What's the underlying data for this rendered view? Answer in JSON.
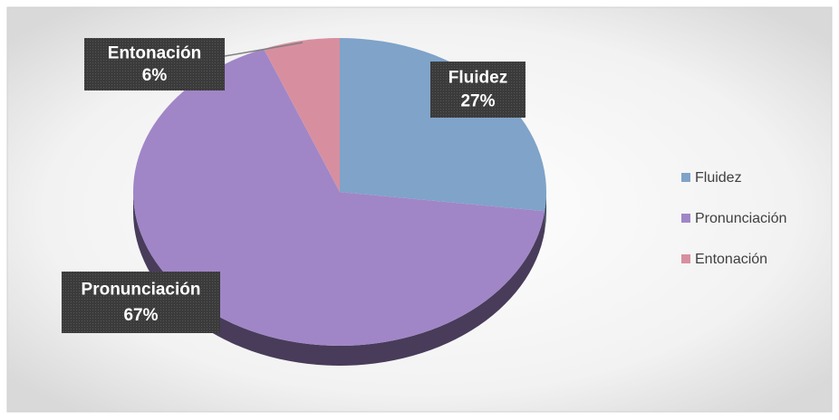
{
  "chart_data": {
    "type": "pie3d",
    "categories": [
      "Fluidez",
      "Pronunciación",
      "Entonación"
    ],
    "values": [
      27,
      67,
      6
    ],
    "value_labels": [
      "27%",
      "67%",
      "6%"
    ],
    "colors": [
      "#7fa3c9",
      "#a086c7",
      "#d78f9f"
    ],
    "legend": "right"
  }
}
